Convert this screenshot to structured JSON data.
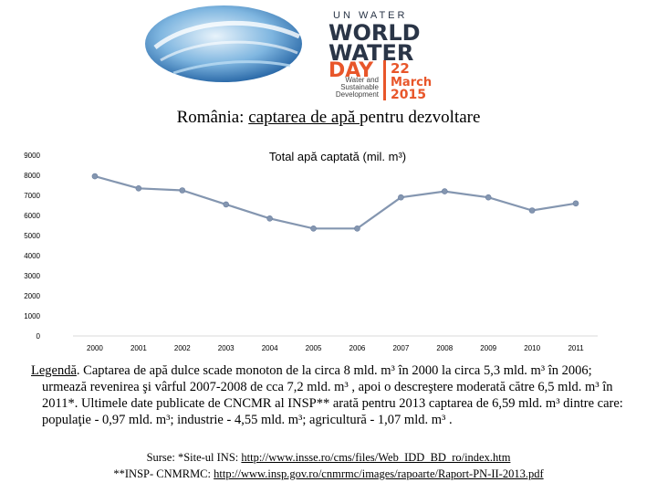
{
  "logo": {
    "top": "UN WATER",
    "line1": "WORLD",
    "line2": "WATER",
    "line3": "DAY",
    "tagline": [
      "Water and",
      "Sustainable",
      "Development"
    ],
    "date_day": "22",
    "date_month": "March",
    "date_year": "2015",
    "colors": {
      "navy": "#2a3547",
      "orange": "#e8562a",
      "blue": "#1d6fb8"
    }
  },
  "slide": {
    "title_plain1": "România: ",
    "title_underlined": "captarea de apă ",
    "title_plain2": "pentru dezvoltare"
  },
  "chart_data": {
    "type": "line",
    "title": "Total apă captată (mil. m³)",
    "x": [
      "2000",
      "2001",
      "2002",
      "2003",
      "2004",
      "2005",
      "2006",
      "2007",
      "2008",
      "2009",
      "2010",
      "2011"
    ],
    "series": [
      {
        "values": [
          7950,
          7350,
          7250,
          6550,
          5850,
          5350,
          5350,
          6900,
          7200,
          6900,
          6250,
          6600
        ]
      }
    ],
    "ylim": [
      0,
      9000
    ],
    "yticks": [
      "0",
      "1000",
      "2000",
      "3000",
      "4000",
      "5000",
      "6000",
      "7000",
      "8000",
      "9000"
    ],
    "grid": false,
    "color": "#8496b0"
  },
  "legend": {
    "label": "Legendă",
    "line1": ". Captarea de apă dulce scade monoton de la circa 8 mld. m³ în 2000 la circa 5,3 mld. m³ în 2006;",
    "rest": "urmează revenirea şi vârful 2007-2008 de cca 7,2 mld. m³ , apoi o descreştere moderată către 6,5 mld. m³ în 2011*. Ultimele date publicate de CNCMR al INSP** arată pentru 2013 captarea de 6,59 mld. m³ dintre care: populaţie - 0,97 mld. m³; industrie - 4,55 mld. m³; agricultură - 1,07 mld. m³ ."
  },
  "sources": {
    "line1_prefix": "Surse: *Site-ul INS: ",
    "line1_link": "http://www.insse.ro/cms/files/Web_IDD_BD_ro/index.htm",
    "line2_prefix": "**INSP- CNMRMC: ",
    "line2_link": "http://www.insp.gov.ro/cnmrmc/images/rapoarte/Raport-PN-II-2013.pdf"
  }
}
